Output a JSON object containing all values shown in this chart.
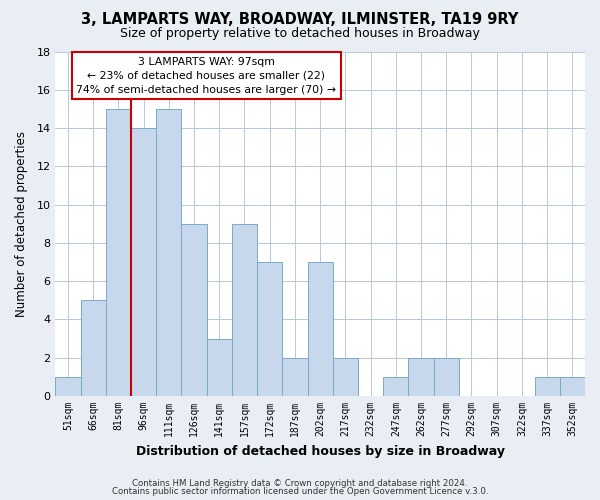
{
  "title": "3, LAMPARTS WAY, BROADWAY, ILMINSTER, TA19 9RY",
  "subtitle": "Size of property relative to detached houses in Broadway",
  "xlabel": "Distribution of detached houses by size in Broadway",
  "ylabel": "Number of detached properties",
  "bins": [
    "51sqm",
    "66sqm",
    "81sqm",
    "96sqm",
    "111sqm",
    "126sqm",
    "141sqm",
    "157sqm",
    "172sqm",
    "187sqm",
    "202sqm",
    "217sqm",
    "232sqm",
    "247sqm",
    "262sqm",
    "277sqm",
    "292sqm",
    "307sqm",
    "322sqm",
    "337sqm",
    "352sqm"
  ],
  "values": [
    1,
    5,
    15,
    14,
    15,
    9,
    3,
    9,
    7,
    2,
    7,
    2,
    0,
    1,
    2,
    2,
    0,
    0,
    0,
    1,
    1
  ],
  "bar_color": "#c8d8ec",
  "bar_edge_color": "#7aaac8",
  "highlight_line_color": "#cc0000",
  "ylim": [
    0,
    18
  ],
  "yticks": [
    0,
    2,
    4,
    6,
    8,
    10,
    12,
    14,
    16,
    18
  ],
  "annotation_title": "3 LAMPARTS WAY: 97sqm",
  "annotation_line1": "← 23% of detached houses are smaller (22)",
  "annotation_line2": "74% of semi-detached houses are larger (70) →",
  "annotation_box_color": "#ffffff",
  "annotation_box_edge": "#cc0000",
  "footer1": "Contains HM Land Registry data © Crown copyright and database right 2024.",
  "footer2": "Contains public sector information licensed under the Open Government Licence v.3.0.",
  "bg_color": "#e8eef4",
  "plot_bg_color": "#ffffff",
  "grid_color": "#b8c8d8"
}
